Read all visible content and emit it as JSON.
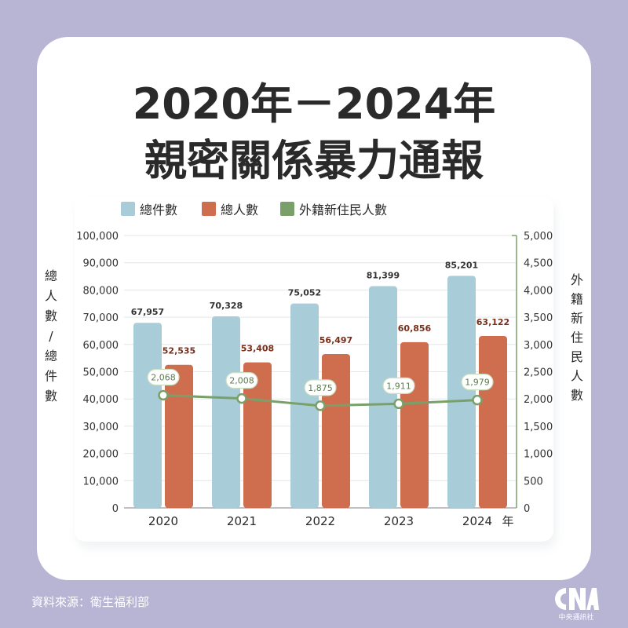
{
  "title_line1": "2020年－2024年",
  "title_line2": "親密關係暴力通報",
  "source": "資料來源：衛生福利部",
  "logo_text": "中央通訊社",
  "colors": {
    "bar1": "#a9cdd8",
    "bar2": "#cf6e4f",
    "line": "#7aa06a"
  },
  "chart_data": {
    "type": "bar",
    "categories": [
      "2020",
      "2021",
      "2022",
      "2023",
      "2024"
    ],
    "x_unit": "年",
    "ylabel": "總人數/總件數",
    "y2label": "外籍新住民人數",
    "ylim": [
      0,
      100000
    ],
    "y2lim": [
      0,
      5000
    ],
    "yticks": [
      "0",
      "10,000",
      "20,000",
      "30,000",
      "40,000",
      "50,000",
      "60,000",
      "70,000",
      "80,000",
      "90,000",
      "100,000"
    ],
    "y2ticks": [
      "0",
      "500",
      "1,000",
      "1,500",
      "2,000",
      "2,500",
      "3,000",
      "3,500",
      "4,000",
      "4,500",
      "5,000"
    ],
    "legend_position": "top-left",
    "series": [
      {
        "name": "總件數",
        "type": "bar",
        "axis": "left",
        "values": [
          67957,
          70328,
          75052,
          81399,
          85201
        ],
        "labels": [
          "67,957",
          "70,328",
          "75,052",
          "81,399",
          "85,201"
        ]
      },
      {
        "name": "總人數",
        "type": "bar",
        "axis": "left",
        "values": [
          52535,
          53408,
          56497,
          60856,
          63122
        ],
        "labels": [
          "52,535",
          "53,408",
          "56,497",
          "60,856",
          "63,122"
        ]
      },
      {
        "name": "外籍新住民人數",
        "type": "line",
        "axis": "right",
        "values": [
          2068,
          2008,
          1875,
          1911,
          1979
        ],
        "labels": [
          "2,068",
          "2,008",
          "1,875",
          "1,911",
          "1,979"
        ]
      }
    ]
  }
}
